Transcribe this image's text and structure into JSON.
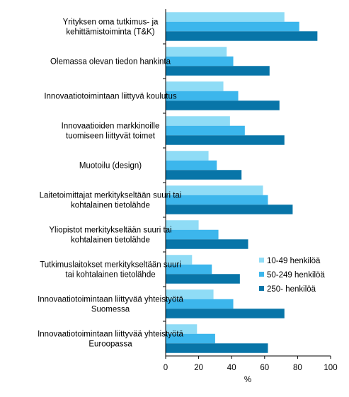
{
  "chart_data": {
    "type": "bar",
    "orientation": "horizontal",
    "categories": [
      "Yrityksen oma tutkimus- ja\nkehittämistoiminta (T&K)",
      "Olemassa olevan tiedon hankinta",
      "Innovaatiotoimintaan liittyvä koulutus",
      "Innovaatioiden markkinoille\ntuomiseen liittyvät toimet",
      "Muotoilu (design)",
      "Laitetoimittajat merkitykseltään suuri tai\nkohtalainen tietolähde",
      "Yliopistot merkitykseltään suuri tai\nkohtalainen tietolähde",
      "Tutkimuslaitokset merkitykseltään suuri\ntai kohtalainen tietolähde",
      "Innovaatiotoimintaan liittyvää yhteistyötä\nSuomessa",
      "Innovaatiotoimintaan liittyvää yhteistyötä\nEuroopassa"
    ],
    "series": [
      {
        "name": "10-49 henkilöä",
        "color": "#8fdcf6",
        "values": [
          72,
          37,
          35,
          39,
          26,
          59,
          20,
          16,
          29,
          19
        ]
      },
      {
        "name": "50-249 henkilöä",
        "color": "#3cb6ec",
        "values": [
          81,
          41,
          44,
          48,
          31,
          62,
          32,
          28,
          41,
          30
        ]
      },
      {
        "name": "250- henkilöä",
        "color": "#0875a8",
        "values": [
          92,
          63,
          69,
          72,
          46,
          77,
          50,
          45,
          72,
          62
        ]
      }
    ],
    "xlim": [
      0,
      100
    ],
    "xticks": [
      "0",
      "20",
      "40",
      "60",
      "80",
      "100"
    ],
    "xlabel": "%",
    "legend_position": "lower-right",
    "grid": false
  }
}
